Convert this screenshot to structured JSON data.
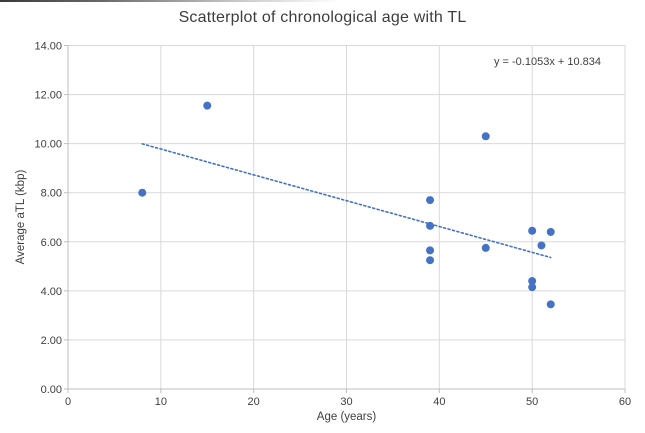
{
  "chart": {
    "title": "Scatterplot of chronological age with TL",
    "equation_label": "y = -0.1053x + 10.834",
    "x_axis_title": "Age (years)",
    "y_axis_title": "Average aTL (kbp)"
  },
  "chart_data": {
    "type": "scatter",
    "title": "Scatterplot of chronological age with TL",
    "xlabel": "Age (years)",
    "ylabel": "Average aTL (kbp)",
    "xlim": [
      0,
      60
    ],
    "ylim": [
      0,
      14
    ],
    "x_tick_values": [
      0,
      10,
      20,
      30,
      40,
      50,
      60
    ],
    "x_tick_labels": [
      "0",
      "10",
      "20",
      "30",
      "40",
      "50",
      "60"
    ],
    "y_tick_values": [
      0,
      2,
      4,
      6,
      8,
      10,
      12,
      14
    ],
    "y_tick_labels": [
      "0.00",
      "2.00",
      "4.00",
      "6.00",
      "8.00",
      "10.00",
      "12.00",
      "14.00"
    ],
    "grid": true,
    "legend": "none",
    "points": [
      {
        "x": 8,
        "y": 8.0
      },
      {
        "x": 15,
        "y": 11.55
      },
      {
        "x": 39,
        "y": 7.7
      },
      {
        "x": 39,
        "y": 6.65
      },
      {
        "x": 39,
        "y": 5.65
      },
      {
        "x": 39,
        "y": 5.25
      },
      {
        "x": 45,
        "y": 10.3
      },
      {
        "x": 45,
        "y": 5.75
      },
      {
        "x": 50,
        "y": 6.45
      },
      {
        "x": 50,
        "y": 4.4
      },
      {
        "x": 50,
        "y": 4.15
      },
      {
        "x": 51,
        "y": 5.85
      },
      {
        "x": 52,
        "y": 6.4
      },
      {
        "x": 52,
        "y": 3.45
      }
    ],
    "trendline": {
      "slope": -0.1053,
      "intercept": 10.834,
      "x_start": 8,
      "x_end": 52,
      "style": "dotted",
      "label": "y = -0.1053x + 10.834"
    },
    "colors": {
      "point": "#4472C4",
      "trendline": "#4472C4",
      "gridline": "#D9D9D9",
      "plot_border": "#D9D9D9",
      "axis_line": "#BFBFBF",
      "text": "#404040"
    }
  }
}
